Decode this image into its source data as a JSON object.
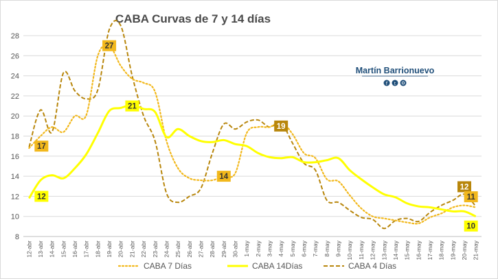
{
  "chart_data": {
    "type": "line",
    "title": "CABA Curvas de 7 y 14 días",
    "xlabel": "",
    "ylabel": "",
    "ylim": [
      8,
      28
    ],
    "yticks": [
      8,
      10,
      12,
      14,
      16,
      18,
      20,
      22,
      24,
      26,
      28
    ],
    "grid": true,
    "legend_position": "bottom",
    "categories": [
      "12-abr",
      "13-abr",
      "14-abr",
      "15-abr",
      "16-abr",
      "17-abr",
      "18-abr",
      "19-abr",
      "20-abr",
      "21-abr",
      "22-abr",
      "23-abr",
      "24-abr",
      "25-abr",
      "26-abr",
      "27-abr",
      "28-abr",
      "29-abr",
      "30-abr",
      "1-may",
      "2-may",
      "3-may",
      "4-may",
      "5-may",
      "6-may",
      "7-may",
      "8-may",
      "9-may",
      "10-may",
      "11-may",
      "12-may",
      "13-may",
      "14-may",
      "15-may",
      "16-may",
      "17-may",
      "18-may",
      "19-may",
      "20-may",
      "21-may"
    ],
    "series": [
      {
        "name": "CABA 7 Días",
        "color": "#f2b81c",
        "style": "dotted",
        "values": [
          16.8,
          18.0,
          18.9,
          18.4,
          20.0,
          20.1,
          26.0,
          27.0,
          25.0,
          23.7,
          23.3,
          22.4,
          17.5,
          14.8,
          13.8,
          13.6,
          13.6,
          14.0,
          14.3,
          18.3,
          18.9,
          18.9,
          19.4,
          18.2,
          16.3,
          15.8,
          13.7,
          13.5,
          12.1,
          10.8,
          10.0,
          9.8,
          9.6,
          9.4,
          9.3,
          9.9,
          10.3,
          10.9,
          11.1,
          10.9
        ]
      },
      {
        "name": "CABA 14Días",
        "color": "#ffff00",
        "style": "solid",
        "values": [
          11.8,
          13.6,
          14.1,
          13.8,
          14.8,
          16.2,
          18.3,
          20.5,
          20.8,
          21.1,
          20.7,
          20.4,
          17.9,
          18.7,
          18.0,
          17.5,
          17.4,
          17.6,
          17.2,
          17.0,
          16.3,
          15.9,
          15.8,
          15.9,
          15.4,
          15.4,
          15.6,
          15.8,
          14.6,
          13.7,
          12.9,
          12.2,
          11.9,
          11.3,
          11.0,
          10.9,
          10.7,
          10.5,
          10.5,
          10.0
        ]
      },
      {
        "name": "CABA 4 Días",
        "color": "#b8860b",
        "style": "dashed",
        "values": [
          16.9,
          20.6,
          18.4,
          24.3,
          22.5,
          21.7,
          22.6,
          28.6,
          29.0,
          24.0,
          20.0,
          17.5,
          12.3,
          11.4,
          12.0,
          12.8,
          16.3,
          19.2,
          18.7,
          19.4,
          19.6,
          18.9,
          19.3,
          17.3,
          15.3,
          14.6,
          11.6,
          11.4,
          10.6,
          9.9,
          9.7,
          8.8,
          9.6,
          9.8,
          9.5,
          10.4,
          11.1,
          11.6,
          12.2,
          11.0
        ]
      }
    ],
    "annotations": [
      {
        "text": "17",
        "category": "12-abr",
        "value": 17,
        "series": "CABA 7 Días"
      },
      {
        "text": "12",
        "category": "12-abr",
        "value": 12,
        "series": "CABA 14Días"
      },
      {
        "text": "27",
        "category": "19-abr",
        "value": 27,
        "series": "CABA 7 Días"
      },
      {
        "text": "21",
        "category": "21-abr",
        "value": 21,
        "series": "CABA 14Días"
      },
      {
        "text": "14",
        "category": "29-abr",
        "value": 14,
        "series": "CABA 7 Días"
      },
      {
        "text": "19",
        "category": "4-may",
        "value": 19,
        "series": "CABA 4 Días"
      },
      {
        "text": "12",
        "category": "20-may",
        "value": 12,
        "series": "CABA 4 Días"
      },
      {
        "text": "11",
        "category": "21-may",
        "value": 11,
        "series": "CABA 7 Días"
      },
      {
        "text": "10",
        "category": "21-may",
        "value": 10,
        "series": "CABA 14Días"
      }
    ]
  },
  "branding": {
    "name": "Martín Barrionuevo",
    "social_icons": [
      "facebook-icon",
      "twitter-icon",
      "instagram-icon"
    ]
  }
}
